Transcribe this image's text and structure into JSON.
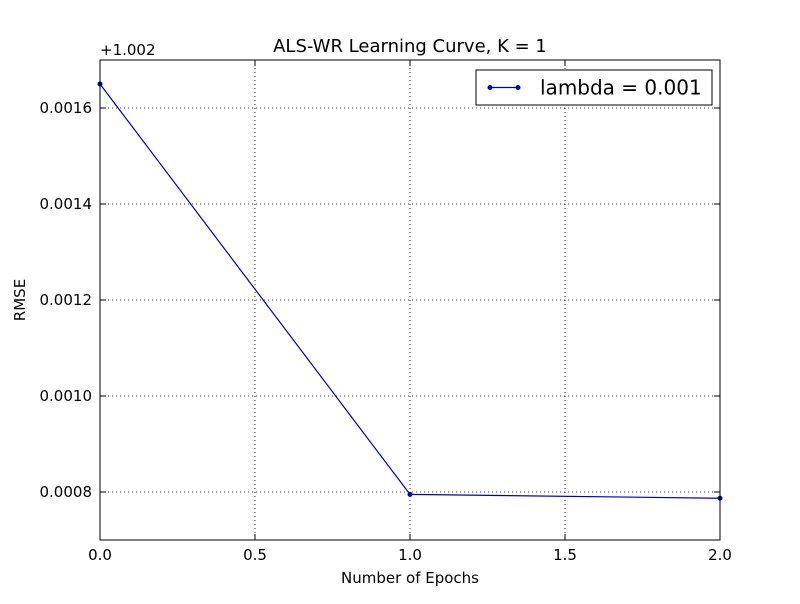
{
  "chart_data": {
    "type": "line",
    "title": "ALS-WR Learning Curve,  K = 1",
    "xlabel": "Number of Epochs",
    "ylabel": "RMSE",
    "y_offset_label": "+1.002",
    "y_offset": 1.002,
    "xlim": [
      0.0,
      2.0
    ],
    "ylim": [
      0.0007,
      0.0017
    ],
    "x_ticks": [
      0.0,
      0.5,
      1.0,
      1.5,
      2.0
    ],
    "x_tick_labels": [
      "0.0",
      "0.5",
      "1.0",
      "1.5",
      "2.0"
    ],
    "y_ticks": [
      0.0008,
      0.001,
      0.0012,
      0.0014,
      0.0016
    ],
    "y_tick_labels": [
      "0.0008",
      "0.0010",
      "0.0012",
      "0.0014",
      "0.0016"
    ],
    "grid": true,
    "legend_position": "top-right",
    "series": [
      {
        "name": "lambda = 0.001",
        "color": "#0000bf",
        "marker": "dot",
        "x": [
          0,
          1,
          2
        ],
        "y": [
          0.00165,
          0.000795,
          0.000787
        ]
      }
    ]
  }
}
